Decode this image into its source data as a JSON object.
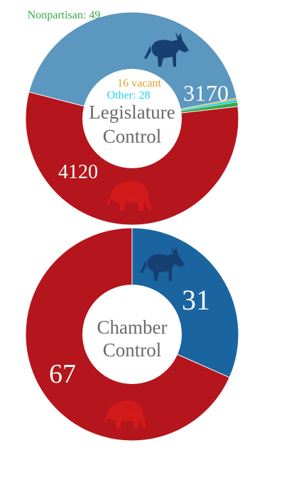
{
  "chart_data": [
    {
      "type": "pie",
      "center_label": [
        "Legislature",
        "Control"
      ],
      "slices": [
        {
          "name": "Democratic",
          "value": 3170,
          "label": "3170",
          "color": "#5b97bf",
          "icon": "donkey-icon"
        },
        {
          "name": "Republican",
          "value": 4120,
          "label": "4120",
          "color": "#b5151c",
          "icon": "elephant-icon"
        },
        {
          "name": "Nonpartisan",
          "value": 49,
          "label": "Nonpartisan: 49",
          "color": "#3aa84a"
        },
        {
          "name": "Other",
          "value": 28,
          "label": "Other: 28",
          "color": "#22d3e6"
        },
        {
          "name": "Vacant",
          "value": 16,
          "label": "16 vacant",
          "color": "#e0a12b"
        }
      ]
    },
    {
      "type": "pie",
      "center_label": [
        "Chamber",
        "Control"
      ],
      "slices": [
        {
          "name": "Democratic",
          "value": 31,
          "label": "31",
          "color": "#1a64a0",
          "icon": "donkey-icon"
        },
        {
          "name": "Republican",
          "value": 67,
          "label": "67",
          "color": "#b5151c",
          "icon": "elephant-icon"
        }
      ]
    }
  ],
  "colors": {
    "center_text": "#6a6a6a",
    "slice_label": "#ffffff",
    "donkey": "#163f72",
    "elephant": "#d31a1a"
  }
}
